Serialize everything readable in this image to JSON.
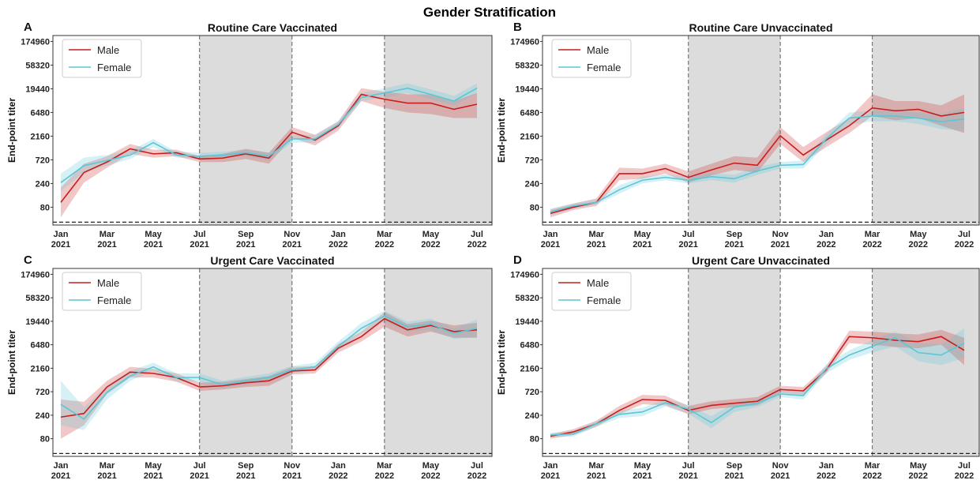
{
  "title": "Gender Stratification",
  "chart_data": [
    {
      "type": "line",
      "panel_label": "A",
      "title": "Routine Care Vaccinated",
      "ylabel": "End-point titer",
      "log_y": true,
      "legend": "upper left",
      "categories": [
        "Jan 2021",
        null,
        "Mar 2021",
        null,
        "May 2021",
        null,
        "Jul 2021",
        null,
        "Sep 2021",
        null,
        "Nov 2021",
        null,
        "Jan 2022",
        null,
        "Mar 2022",
        null,
        "May 2022",
        null,
        "Jul 2022"
      ],
      "ylim": [
        35,
        230000
      ],
      "yticks": [
        80,
        240,
        720,
        2160,
        6480,
        19440,
        58320,
        174960
      ],
      "hline": 40,
      "vlines": [
        "Jul 2021",
        "Nov 2021",
        "Mar 2022"
      ],
      "shaded": [
        [
          "Jul 2021",
          "Nov 2021"
        ],
        [
          "Mar 2022",
          "Jul 2022"
        ]
      ],
      "series": [
        {
          "name": "Male",
          "color": "#c81e1e",
          "values": [
            100,
            400,
            650,
            1200,
            950,
            1000,
            750,
            780,
            950,
            780,
            2600,
            1800,
            3500,
            15000,
            12000,
            10000,
            10000,
            7500,
            9500
          ],
          "lower": [
            50,
            250,
            500,
            950,
            800,
            850,
            650,
            650,
            750,
            600,
            2000,
            1400,
            2800,
            11000,
            8000,
            6500,
            6000,
            5000,
            5000
          ],
          "upper": [
            200,
            600,
            850,
            1500,
            1150,
            1150,
            850,
            950,
            1200,
            1000,
            3300,
            2300,
            4300,
            20000,
            17000,
            15000,
            15000,
            11000,
            16000
          ]
        },
        {
          "name": "Female",
          "color": "#5cc6d6",
          "values": [
            250,
            550,
            700,
            900,
            1600,
            900,
            850,
            900,
            1000,
            850,
            1900,
            1900,
            3700,
            13000,
            16000,
            20000,
            15000,
            11000,
            20000
          ],
          "lower": [
            170,
            400,
            550,
            750,
            1300,
            800,
            750,
            800,
            850,
            700,
            1600,
            1600,
            3200,
            11000,
            13000,
            16000,
            12000,
            9000,
            16000
          ],
          "upper": [
            380,
            800,
            900,
            1100,
            1900,
            1050,
            1000,
            1050,
            1150,
            1000,
            2300,
            2300,
            4300,
            16000,
            20000,
            25000,
            19000,
            14000,
            25000
          ]
        }
      ]
    },
    {
      "type": "line",
      "panel_label": "B",
      "title": "Routine Care Unvaccinated",
      "ylabel": "End-point titer",
      "log_y": true,
      "legend": "upper left",
      "categories": [
        "Jan 2021",
        null,
        "Mar 2021",
        null,
        "May 2021",
        null,
        "Jul 2021",
        null,
        "Sep 2021",
        null,
        "Nov 2021",
        null,
        "Jan 2022",
        null,
        "Mar 2022",
        null,
        "May 2022",
        null,
        "Jul 2022"
      ],
      "ylim": [
        35,
        230000
      ],
      "yticks": [
        80,
        240,
        720,
        2160,
        6480,
        19440,
        58320,
        174960
      ],
      "hline": 40,
      "vlines": [
        "Jul 2021",
        "Nov 2021",
        "Mar 2022"
      ],
      "shaded": [
        [
          "Jul 2021",
          "Nov 2021"
        ],
        [
          "Mar 2022",
          "Jul 2022"
        ]
      ],
      "series": [
        {
          "name": "Male",
          "color": "#c81e1e",
          "values": [
            60,
            80,
            100,
            380,
            380,
            480,
            320,
            450,
            620,
            560,
            2200,
            900,
            1800,
            3500,
            8000,
            7000,
            7500,
            5500,
            6500
          ],
          "lower": [
            50,
            70,
            85,
            280,
            300,
            380,
            250,
            350,
            450,
            400,
            1500,
            650,
            1300,
            2500,
            5500,
            4500,
            5000,
            3500,
            2500
          ],
          "upper": [
            72,
            95,
            120,
            500,
            480,
            600,
            420,
            600,
            850,
            800,
            3300,
            1300,
            2600,
            5000,
            15000,
            11000,
            11000,
            9000,
            15000
          ]
        },
        {
          "name": "Female",
          "color": "#5cc6d6",
          "values": [
            65,
            85,
            100,
            180,
            280,
            320,
            280,
            330,
            300,
            430,
            560,
            580,
            1900,
            5000,
            5500,
            5500,
            5000,
            4200,
            4800
          ],
          "lower": [
            55,
            75,
            90,
            150,
            240,
            280,
            240,
            280,
            250,
            360,
            480,
            480,
            1500,
            3700,
            4300,
            4300,
            3800,
            3000,
            2800
          ],
          "upper": [
            75,
            95,
            115,
            220,
            330,
            370,
            330,
            390,
            360,
            520,
            650,
            700,
            2400,
            6500,
            7000,
            7000,
            6500,
            6000,
            8000
          ]
        }
      ]
    },
    {
      "type": "line",
      "panel_label": "C",
      "title": "Urgent Care Vaccinated",
      "ylabel": "End-point titer",
      "log_y": true,
      "legend": "upper left",
      "categories": [
        "Jan 2021",
        null,
        "Mar 2021",
        null,
        "May 2021",
        null,
        "Jul 2021",
        null,
        "Sep 2021",
        null,
        "Nov 2021",
        null,
        "Jan 2022",
        null,
        "Mar 2022",
        null,
        "May 2022",
        null,
        "Jul 2022"
      ],
      "ylim": [
        35,
        230000
      ],
      "yticks": [
        80,
        240,
        720,
        2160,
        6480,
        19440,
        58320,
        174960
      ],
      "hline": 40,
      "vlines": [
        "Jul 2021",
        "Nov 2021",
        "Mar 2022"
      ],
      "shaded": [
        [
          "Jul 2021",
          "Nov 2021"
        ],
        [
          "Mar 2022",
          "Jul 2022"
        ]
      ],
      "series": [
        {
          "name": "Male",
          "color": "#c81e1e",
          "values": [
            220,
            260,
            900,
            1800,
            1700,
            1400,
            900,
            950,
            1100,
            1200,
            1900,
            2000,
            5500,
            9500,
            22000,
            13000,
            16000,
            12000,
            13000
          ],
          "lower": [
            80,
            150,
            650,
            1400,
            1400,
            1150,
            750,
            800,
            900,
            950,
            1600,
            1700,
            4500,
            7500,
            15000,
            9500,
            12000,
            9000,
            9000
          ],
          "upper": [
            500,
            450,
            1200,
            2300,
            2100,
            1700,
            1100,
            1150,
            1300,
            1500,
            2300,
            2400,
            6800,
            12000,
            30000,
            17000,
            20000,
            16000,
            18000
          ]
        },
        {
          "name": "Female",
          "color": "#5cc6d6",
          "values": [
            400,
            200,
            700,
            1500,
            2300,
            1400,
            1400,
            1000,
            1200,
            1400,
            2000,
            2300,
            6000,
            14000,
            25000,
            15000,
            17000,
            11000,
            14000
          ],
          "lower": [
            150,
            120,
            500,
            1200,
            1900,
            1150,
            1150,
            850,
            1000,
            1150,
            1700,
            1900,
            5000,
            11000,
            19000,
            12000,
            13000,
            8500,
            9500
          ],
          "upper": [
            1200,
            350,
            950,
            1900,
            2800,
            1700,
            1700,
            1200,
            1450,
            1700,
            2400,
            2800,
            7500,
            18000,
            32000,
            19000,
            22000,
            14000,
            21000
          ]
        }
      ]
    },
    {
      "type": "line",
      "panel_label": "D",
      "title": "Urgent Care Unvaccinated",
      "ylabel": "End-point titer",
      "log_y": true,
      "legend": "upper left",
      "categories": [
        "Jan 2021",
        null,
        "Mar 2021",
        null,
        "May 2021",
        null,
        "Jul 2021",
        null,
        "Sep 2021",
        null,
        "Nov 2021",
        null,
        "Jan 2022",
        null,
        "Mar 2022",
        null,
        "May 2022",
        null,
        "Jul 2022"
      ],
      "ylim": [
        35,
        230000
      ],
      "yticks": [
        80,
        240,
        720,
        2160,
        6480,
        19440,
        58320,
        174960
      ],
      "hline": 40,
      "vlines": [
        "Jul 2021",
        "Nov 2021",
        "Mar 2022"
      ],
      "shaded": [
        [
          "Jul 2021",
          "Nov 2021"
        ],
        [
          "Mar 2022",
          "Jul 2022"
        ]
      ],
      "series": [
        {
          "name": "Male",
          "color": "#c81e1e",
          "values": [
            90,
            110,
            160,
            300,
            500,
            480,
            300,
            380,
            420,
            460,
            800,
            750,
            2000,
            9500,
            9000,
            8000,
            7500,
            9500,
            5000
          ],
          "lower": [
            80,
            95,
            140,
            250,
            400,
            380,
            250,
            320,
            350,
            380,
            680,
            620,
            1700,
            7000,
            6500,
            5800,
            5500,
            6500,
            2500
          ],
          "upper": [
            100,
            125,
            185,
            370,
            620,
            600,
            370,
            460,
            510,
            560,
            950,
            900,
            2400,
            12500,
            12000,
            11000,
            10500,
            13000,
            9000
          ]
        },
        {
          "name": "Female",
          "color": "#5cc6d6",
          "values": [
            95,
            100,
            160,
            250,
            280,
            430,
            320,
            170,
            350,
            420,
            650,
            600,
            2100,
            4000,
            6000,
            9000,
            4500,
            4000,
            7000
          ],
          "lower": [
            85,
            88,
            140,
            210,
            230,
            360,
            260,
            130,
            280,
            350,
            560,
            500,
            1700,
            3200,
            4500,
            6000,
            3000,
            2500,
            3500
          ],
          "upper": [
            105,
            115,
            185,
            300,
            340,
            510,
            390,
            230,
            430,
            500,
            760,
            720,
            2600,
            5000,
            8000,
            12000,
            7000,
            6500,
            14000
          ]
        }
      ]
    }
  ]
}
